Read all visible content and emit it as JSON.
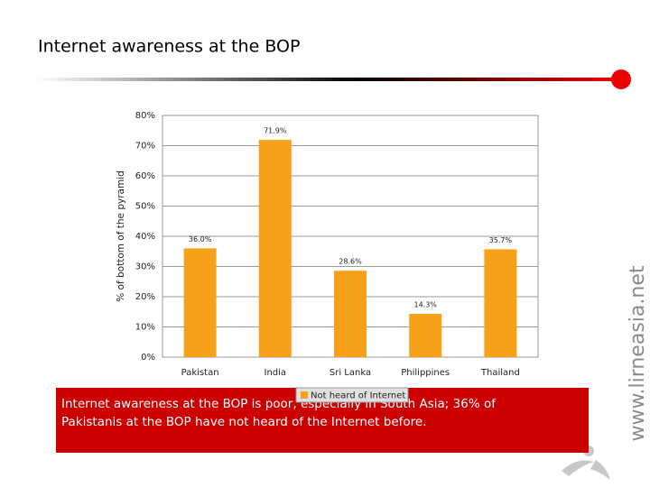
{
  "slide": {
    "title": "Internet awareness at the BOP",
    "caption": [
      "Internet awareness at the BOP is poor, especially in South Asia; 36% of",
      "Pakistanis at the BOP have not heard of the Internet before."
    ],
    "website": "www.lirneasia.net"
  },
  "chart_data": {
    "type": "bar",
    "ylabel": "% of bottom of the pyramid",
    "categories": [
      "Pakistan",
      "India",
      "Sri Lanka",
      "Philippines",
      "Thailand"
    ],
    "series": [
      {
        "name": "Not heard of Internet",
        "color": "#f7a11a",
        "values": [
          36.0,
          71.9,
          28.6,
          14.3,
          35.7
        ],
        "value_labels": [
          "36.0%",
          "71.9%",
          "28.6%",
          "14.3%",
          "35.7%"
        ]
      }
    ],
    "ylim": [
      0,
      80
    ],
    "yticks": [
      {
        "value": 0,
        "label": "0%"
      },
      {
        "value": 10,
        "label": "10%"
      },
      {
        "value": 20,
        "label": "20%"
      },
      {
        "value": 30,
        "label": "30%"
      },
      {
        "value": 40,
        "label": "40%"
      },
      {
        "value": 50,
        "label": "50%"
      },
      {
        "value": 60,
        "label": "60%"
      },
      {
        "value": 70,
        "label": "70%"
      },
      {
        "value": 80,
        "label": "80%"
      }
    ],
    "grid": true
  }
}
